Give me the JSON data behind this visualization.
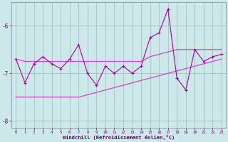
{
  "x": [
    0,
    1,
    2,
    3,
    4,
    5,
    6,
    7,
    8,
    9,
    10,
    11,
    12,
    13,
    14,
    15,
    16,
    17,
    18,
    19,
    20,
    21,
    22,
    23
  ],
  "windchill": [
    -6.7,
    -7.2,
    -6.8,
    -6.65,
    -6.8,
    -6.9,
    -6.7,
    -6.4,
    -7.0,
    -7.25,
    -6.85,
    -7.0,
    -6.85,
    -7.0,
    -6.85,
    -6.25,
    -6.15,
    -5.65,
    -7.1,
    -7.35,
    -6.5,
    -6.75,
    -6.65,
    -6.6
  ],
  "upper": [
    -6.7,
    -6.75,
    -6.75,
    -6.75,
    -6.75,
    -6.75,
    -6.75,
    -6.75,
    -6.75,
    -6.75,
    -6.75,
    -6.75,
    -6.75,
    -6.75,
    -6.75,
    -6.65,
    -6.6,
    -6.55,
    -6.5,
    -6.5,
    -6.5,
    -6.5,
    -6.5,
    -6.5
  ],
  "lower": [
    -7.5,
    -7.5,
    -7.5,
    -7.5,
    -7.5,
    -7.5,
    -7.5,
    -7.5,
    -7.45,
    -7.4,
    -7.35,
    -7.3,
    -7.25,
    -7.2,
    -7.15,
    -7.1,
    -7.05,
    -7.0,
    -6.95,
    -6.9,
    -6.85,
    -6.8,
    -6.75,
    -6.7
  ],
  "color_main": "#aa00aa",
  "color_upper": "#cc44cc",
  "color_lower": "#cc44cc",
  "bg_color": "#cce8e8",
  "tick_color": "#660066",
  "xlabel": "Windchill (Refroidissement éolien,°C)",
  "ylim": [
    -8.15,
    -5.5
  ],
  "xlim": [
    -0.5,
    23.5
  ],
  "yticks": [
    -8,
    -7,
    -6
  ],
  "xticks": [
    0,
    1,
    2,
    3,
    4,
    5,
    6,
    7,
    8,
    9,
    10,
    11,
    12,
    13,
    14,
    15,
    16,
    17,
    18,
    19,
    20,
    21,
    22,
    23
  ]
}
